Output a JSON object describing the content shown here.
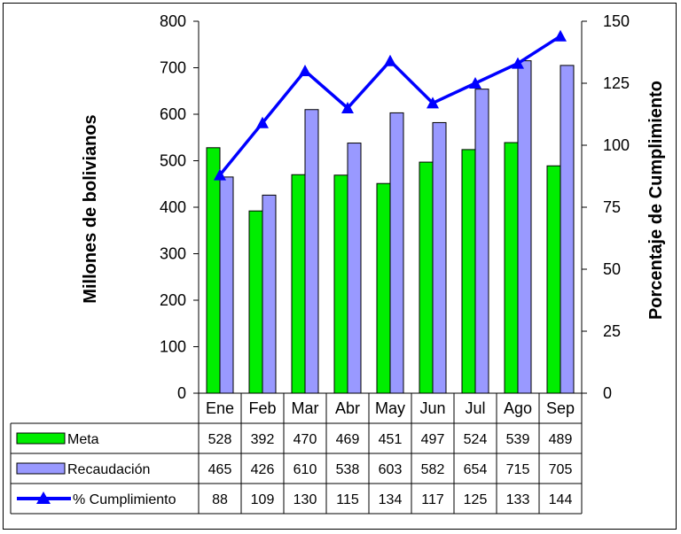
{
  "chart_data": {
    "type": "bar",
    "categories": [
      "Ene",
      "Feb",
      "Mar",
      "Abr",
      "May",
      "Jun",
      "Jul",
      "Ago",
      "Sep"
    ],
    "series": [
      {
        "name": "Meta",
        "kind": "bar",
        "axis": "left",
        "color": "#00ee00",
        "values": [
          528,
          392,
          470,
          469,
          451,
          497,
          524,
          539,
          489
        ]
      },
      {
        "name": "Recaudación",
        "kind": "bar",
        "axis": "left",
        "color": "#9999ff",
        "values": [
          465,
          426,
          610,
          538,
          603,
          582,
          654,
          715,
          705
        ]
      },
      {
        "name": "% Cumplimiento",
        "kind": "line",
        "axis": "right",
        "color": "#0000ff",
        "values": [
          88,
          109,
          130,
          115,
          134,
          117,
          125,
          133,
          144
        ]
      }
    ],
    "ylabel": "Millones de bolivianos",
    "y2label": "Porcentaje de Cumplimiento",
    "ylim": [
      0,
      800
    ],
    "y2lim": [
      0,
      150
    ],
    "yticks": [
      0,
      100,
      200,
      300,
      400,
      500,
      600,
      700,
      800
    ],
    "y2ticks": [
      0,
      25,
      50,
      75,
      100,
      125,
      150
    ],
    "grid": false,
    "legend": "data table below chart"
  }
}
